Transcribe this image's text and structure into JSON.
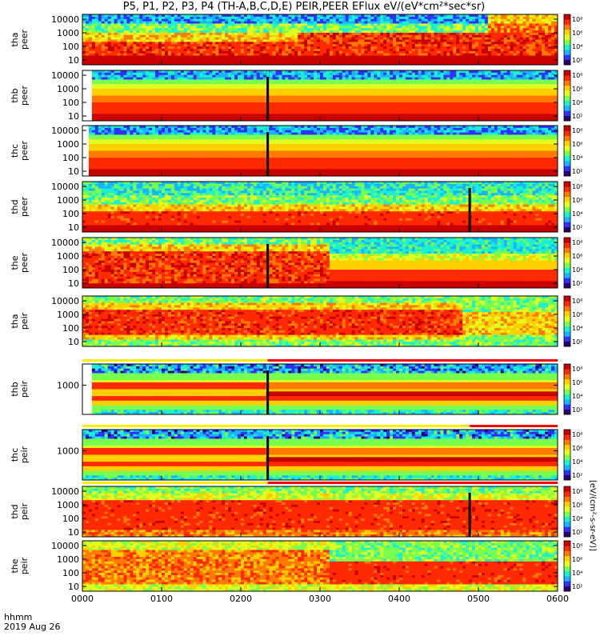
{
  "title": "P5, P1, P2, P3, P4 (TH-A,B,C,D,E) PEIR,PEER EFlux eV/(eV*cm²*sec*sr)",
  "colors": {
    "colormap": [
      "#2a006f",
      "#3030ff",
      "#19b4ff",
      "#1bf0d2",
      "#78ff50",
      "#e0ff20",
      "#ffd000",
      "#ff7a00",
      "#ff2a00",
      "#c80000"
    ],
    "mode_bar_yellow": "#ffee00",
    "mode_bar_red": "#ff0000"
  },
  "footer": {
    "time_format": "hhmm",
    "date": "2019 Aug 26"
  },
  "colorbar": {
    "unit_label": "[eV/(cm²-s-sr-eV)]",
    "tick_labels": [
      "10⁸",
      "10⁶",
      "10⁴",
      "10²"
    ]
  },
  "chart_data": {
    "type": "heatmap",
    "x_axis": {
      "label": "hhmm",
      "range": [
        "0000",
        "0600"
      ],
      "ticks": [
        "0000",
        "0100",
        "0200",
        "0300",
        "0400",
        "0500",
        "0600"
      ]
    },
    "y_scale": "log",
    "panels": [
      {
        "probe": "tha",
        "species": "peer",
        "yticks": [
          "10000",
          "1000",
          "100",
          "10"
        ],
        "profile": "peer_a",
        "gaps": []
      },
      {
        "probe": "thb",
        "species": "peer",
        "yticks": [
          "10000",
          "1000",
          "100",
          "10"
        ],
        "profile": "peer_bc",
        "gaps": [
          [
            0.0,
            0.02
          ]
        ],
        "spikes": [
          0.39
        ]
      },
      {
        "probe": "thc",
        "species": "peer",
        "yticks": [
          "10000",
          "1000",
          "100",
          "10"
        ],
        "profile": "peer_bc",
        "gaps": [
          [
            0.0,
            0.01
          ]
        ],
        "spikes": [
          0.39
        ]
      },
      {
        "probe": "thd",
        "species": "peer",
        "yticks": [
          "10000",
          "1000",
          "100",
          "10"
        ],
        "profile": "peer_d",
        "gaps": [],
        "spikes": [
          0.815
        ]
      },
      {
        "probe": "the",
        "species": "peer",
        "yticks": [
          "10000",
          "1000",
          "100",
          "10"
        ],
        "profile": "peer_e",
        "gaps": [],
        "spikes": [
          0.39
        ]
      },
      {
        "probe": "tha",
        "species": "peir",
        "yticks": [
          "10000",
          "1000",
          "100",
          "10"
        ],
        "profile": "peir_a",
        "gaps": []
      },
      {
        "probe": "thb",
        "species": "peir",
        "yticks": [
          "1000"
        ],
        "profile": "peir_bc",
        "gaps": [
          [
            0.0,
            0.02
          ]
        ],
        "spikes": [
          0.39
        ]
      },
      {
        "probe": "thc",
        "species": "peir",
        "yticks": [
          "1000"
        ],
        "profile": "peir_bc",
        "gaps": [],
        "spikes": [
          0.39
        ]
      },
      {
        "probe": "thd",
        "species": "peir",
        "yticks": [
          "10000",
          "1000",
          "100",
          "10"
        ],
        "profile": "peir_d",
        "gaps": [],
        "spikes": [
          0.815
        ]
      },
      {
        "probe": "the",
        "species": "peir",
        "yticks": [
          "10000",
          "1000",
          "100",
          "10"
        ],
        "profile": "peir_e",
        "gaps": []
      }
    ],
    "mode_bars": [
      {
        "after_panel": 5,
        "yellow_until": 0.39
      },
      {
        "after_panel": 7,
        "yellow_until": 0.815
      },
      {
        "after_panel": 8,
        "yellow_until": 0.39
      }
    ],
    "colorbar_range": [
      "10²",
      "10⁸"
    ],
    "grid": false
  }
}
